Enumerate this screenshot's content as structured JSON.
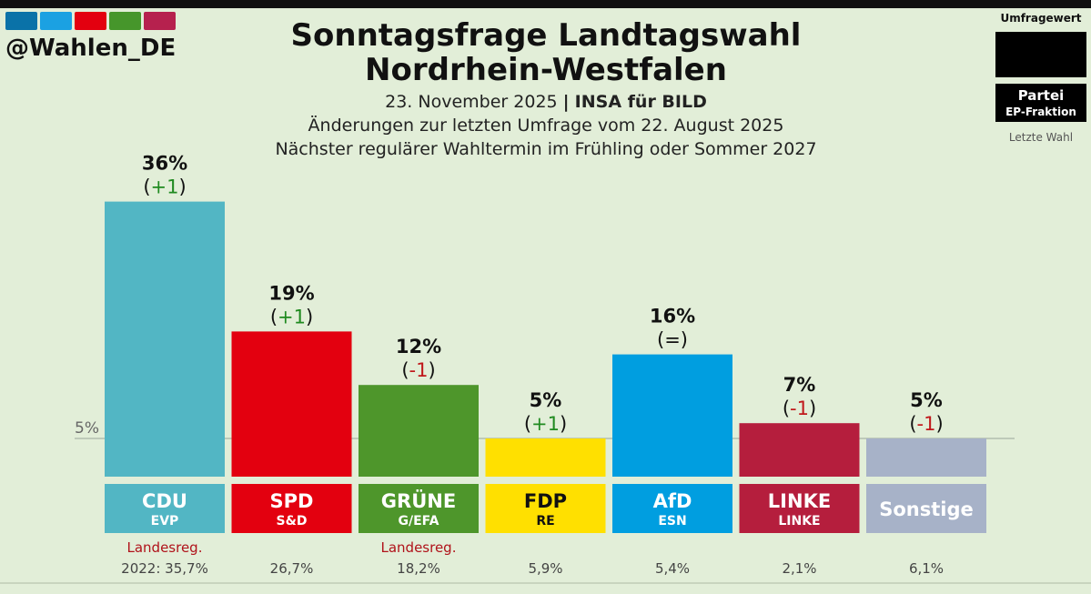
{
  "header": {
    "handle": "@Wahlen_DE",
    "logo_colors": [
      "#0a72a8",
      "#1ba1e2",
      "#e3000f",
      "#46962b",
      "#b6214e"
    ],
    "title_line1": "Sonntagsfrage Landtagswahl",
    "title_line2": "Nordrhein-Westfalen",
    "date": "23. November 2025",
    "separator": "|",
    "source": "INSA für BILD",
    "changes_note": "Änderungen zur letzten Umfrage vom 22. August 2025",
    "next_election": "Nächster regulärer Wahltermin im Frühling oder Sommer 2027"
  },
  "legend": {
    "title": "Umfragewert",
    "party": "Partei",
    "fraction": "EP-Fraktion",
    "last": "Letzte Wahl"
  },
  "chart_data": {
    "type": "bar",
    "ylim": [
      0,
      40
    ],
    "threshold": 5,
    "threshold_label": "5%",
    "categories": [
      "CDU",
      "SPD",
      "GRÜNE",
      "FDP",
      "AfD",
      "LINKE",
      "Sonstige"
    ],
    "values": [
      36,
      19,
      12,
      5,
      16,
      7,
      5
    ],
    "value_labels": [
      "36%",
      "19%",
      "12%",
      "5%",
      "16%",
      "7%",
      "5%"
    ],
    "changes": [
      "(+1)",
      "(+1)",
      "(-1)",
      "(+1)",
      "(=)",
      "(-1)",
      "(-1)"
    ],
    "change_types": [
      "up",
      "up",
      "down",
      "up",
      "same",
      "down",
      "down"
    ],
    "groups": [
      "EVP",
      "S&D",
      "G/EFA",
      "RE",
      "ESN",
      "LINKE",
      ""
    ],
    "colors": [
      "#52b6c4",
      "#e3000f",
      "#4e962b",
      "#ffe000",
      "#009ee0",
      "#b51e3d",
      "#a7b2c8"
    ],
    "label_text_colors": [
      "#ffffff",
      "#ffffff",
      "#ffffff",
      "#111111",
      "#ffffff",
      "#ffffff",
      "#ffffff"
    ],
    "government": [
      "Landesreg.",
      "",
      "Landesreg.",
      "",
      "",
      "",
      ""
    ],
    "last_election": [
      "2022: 35,7%",
      "26,7%",
      "18,2%",
      "5,9%",
      "5,4%",
      "2,1%",
      "6,1%"
    ]
  }
}
